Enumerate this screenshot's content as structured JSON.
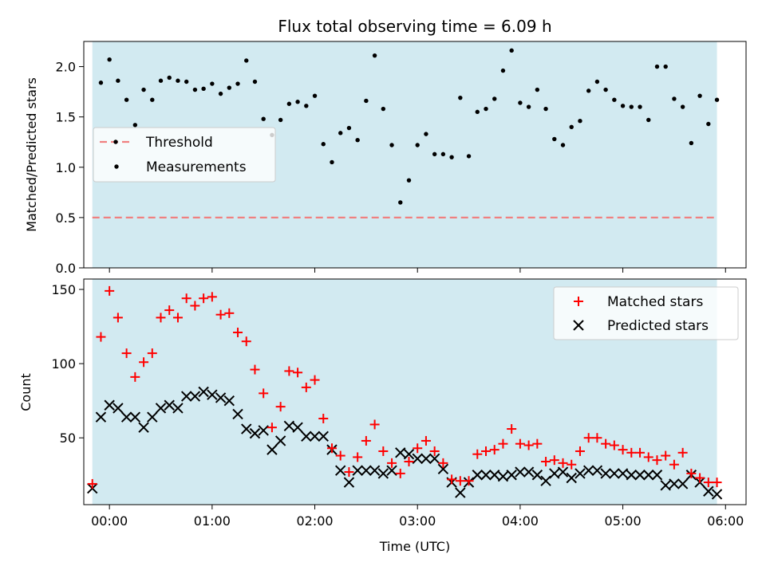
{
  "figure": {
    "title": "Flux total observing time = 6.09 h",
    "xlabel": "Time (UTC)"
  },
  "chart_data": [
    {
      "type": "scatter",
      "panel": "top",
      "ylabel": "Matched/Predicted stars",
      "xlim": [
        "-00:15",
        "06:12"
      ],
      "ylim": [
        0,
        2.25
      ],
      "yticks": [
        "0.0",
        "0.5",
        "1.0",
        "1.5",
        "2.0"
      ],
      "ytick_values": [
        0,
        0.5,
        1.0,
        1.5,
        2.0
      ],
      "grid": false,
      "legend_placement": "center-left",
      "shaded_interval": {
        "start": "-00:10",
        "end": "05:55",
        "color": "#add8e6"
      },
      "threshold": {
        "name": "Threshold",
        "value": 0.5,
        "color": "#f08080",
        "style": "dashed"
      },
      "series": [
        {
          "name": "Measurements",
          "color": "#000000",
          "x": [
            "-00:05",
            "00:00",
            "00:05",
            "00:10",
            "00:15",
            "00:20",
            "00:25",
            "00:30",
            "00:35",
            "00:40",
            "00:45",
            "00:50",
            "00:55",
            "01:00",
            "01:05",
            "01:10",
            "01:15",
            "01:20",
            "01:25",
            "01:30",
            "01:35",
            "01:40",
            "01:45",
            "01:50",
            "01:55",
            "02:00",
            "02:05",
            "02:10",
            "02:15",
            "02:20",
            "02:25",
            "02:30",
            "02:35",
            "02:40",
            "02:45",
            "02:50",
            "02:55",
            "03:00",
            "03:05",
            "03:10",
            "03:15",
            "03:20",
            "03:25",
            "03:30",
            "03:35",
            "03:40",
            "03:45",
            "03:50",
            "03:55",
            "04:00",
            "04:05",
            "04:10",
            "04:15",
            "04:20",
            "04:25",
            "04:30",
            "04:35",
            "04:40",
            "04:45",
            "04:50",
            "04:55",
            "05:00",
            "05:05",
            "05:10",
            "05:15",
            "05:20",
            "05:25",
            "05:30",
            "05:35",
            "05:40",
            "05:45",
            "05:50",
            "05:55"
          ],
          "y": [
            1.84,
            2.07,
            1.86,
            1.67,
            1.42,
            1.77,
            1.67,
            1.86,
            1.89,
            1.86,
            1.85,
            1.77,
            1.78,
            1.83,
            1.73,
            1.79,
            1.83,
            2.06,
            1.85,
            1.48,
            1.32,
            1.47,
            1.63,
            1.65,
            1.61,
            1.71,
            1.23,
            1.05,
            1.34,
            1.39,
            1.27,
            1.66,
            2.11,
            1.58,
            1.22,
            0.65,
            0.87,
            1.22,
            1.33,
            1.13,
            1.13,
            1.1,
            1.69,
            1.11,
            1.55,
            1.58,
            1.68,
            1.96,
            2.16,
            1.64,
            1.6,
            1.77,
            1.58,
            1.28,
            1.22,
            1.4,
            1.46,
            1.76,
            1.85,
            1.77,
            1.67,
            1.61,
            1.6,
            1.6,
            1.47,
            2.0,
            2.0,
            1.68,
            1.6,
            1.24,
            1.71,
            1.43,
            1.67
          ]
        }
      ]
    },
    {
      "type": "scatter",
      "panel": "bottom",
      "ylabel": "Count",
      "xlabel": "Time (UTC)",
      "xlim": [
        "-00:15",
        "06:12"
      ],
      "xticks": [
        "00:00",
        "01:00",
        "02:00",
        "03:00",
        "04:00",
        "05:00",
        "06:00"
      ],
      "ylim": [
        5,
        157
      ],
      "yticks": [
        "50",
        "100",
        "150"
      ],
      "ytick_values": [
        50,
        100,
        150
      ],
      "grid": false,
      "legend_placement": "top-right",
      "shaded_interval": {
        "start": "-00:10",
        "end": "05:55",
        "color": "#add8e6"
      },
      "series": [
        {
          "name": "Matched stars",
          "color": "#ff0000",
          "marker": "plus",
          "x": [
            "-00:10",
            "-00:05",
            "00:00",
            "00:05",
            "00:10",
            "00:15",
            "00:20",
            "00:25",
            "00:30",
            "00:35",
            "00:40",
            "00:45",
            "00:50",
            "00:55",
            "01:00",
            "01:05",
            "01:10",
            "01:15",
            "01:20",
            "01:25",
            "01:30",
            "01:35",
            "01:40",
            "01:45",
            "01:50",
            "01:55",
            "02:00",
            "02:05",
            "02:10",
            "02:15",
            "02:20",
            "02:25",
            "02:30",
            "02:35",
            "02:40",
            "02:45",
            "02:50",
            "02:55",
            "03:00",
            "03:05",
            "03:10",
            "03:15",
            "03:20",
            "03:25",
            "03:30",
            "03:35",
            "03:40",
            "03:45",
            "03:50",
            "03:55",
            "04:00",
            "04:05",
            "04:10",
            "04:15",
            "04:20",
            "04:25",
            "04:30",
            "04:35",
            "04:40",
            "04:45",
            "04:50",
            "04:55",
            "05:00",
            "05:05",
            "05:10",
            "05:15",
            "05:20",
            "05:25",
            "05:30",
            "05:35",
            "05:40",
            "05:45",
            "05:50",
            "05:55"
          ],
          "y": [
            19,
            118,
            149,
            131,
            107,
            91,
            101,
            107,
            131,
            136,
            131,
            144,
            139,
            144,
            145,
            133,
            134,
            121,
            115,
            96,
            80,
            57,
            71,
            95,
            94,
            84,
            89,
            63,
            43,
            38,
            27,
            37,
            48,
            59,
            41,
            33,
            26,
            34,
            43,
            48,
            41,
            33,
            22,
            21,
            21,
            39,
            41,
            42,
            46,
            56,
            46,
            45,
            46,
            34,
            35,
            33,
            32,
            41,
            50,
            50,
            46,
            45,
            42,
            40,
            40,
            37,
            35,
            38,
            32,
            40,
            26,
            23,
            20,
            20
          ]
        },
        {
          "name": "Predicted stars",
          "color": "#000000",
          "marker": "x",
          "x": [
            "-00:10",
            "-00:05",
            "00:00",
            "00:05",
            "00:10",
            "00:15",
            "00:20",
            "00:25",
            "00:30",
            "00:35",
            "00:40",
            "00:45",
            "00:50",
            "00:55",
            "01:00",
            "01:05",
            "01:10",
            "01:15",
            "01:20",
            "01:25",
            "01:30",
            "01:35",
            "01:40",
            "01:45",
            "01:50",
            "01:55",
            "02:00",
            "02:05",
            "02:10",
            "02:15",
            "02:20",
            "02:25",
            "02:30",
            "02:35",
            "02:40",
            "02:45",
            "02:50",
            "02:55",
            "03:00",
            "03:05",
            "03:10",
            "03:15",
            "03:20",
            "03:25",
            "03:30",
            "03:35",
            "03:40",
            "03:45",
            "03:50",
            "03:55",
            "04:00",
            "04:05",
            "04:10",
            "04:15",
            "04:20",
            "04:25",
            "04:30",
            "04:35",
            "04:40",
            "04:45",
            "04:50",
            "04:55",
            "05:00",
            "05:05",
            "05:10",
            "05:15",
            "05:20",
            "05:25",
            "05:30",
            "05:35",
            "05:40",
            "05:45",
            "05:50",
            "05:55"
          ],
          "y": [
            16,
            64,
            72,
            70,
            64,
            64,
            57,
            64,
            70,
            72,
            70,
            78,
            78,
            81,
            79,
            77,
            75,
            66,
            56,
            53,
            55,
            42,
            48,
            58,
            57,
            51,
            51,
            51,
            42,
            28,
            20,
            28,
            28,
            28,
            26,
            28,
            40,
            39,
            36,
            36,
            36,
            29,
            20,
            13,
            20,
            25,
            25,
            25,
            24,
            25,
            27,
            27,
            25,
            21,
            26,
            27,
            23,
            26,
            28,
            28,
            26,
            26,
            26,
            25,
            25,
            25,
            25,
            18,
            19,
            19,
            25,
            20,
            14,
            12
          ]
        }
      ]
    }
  ]
}
